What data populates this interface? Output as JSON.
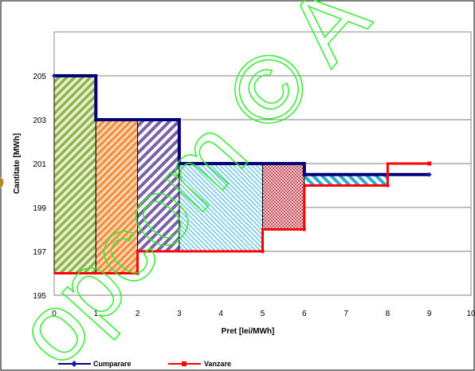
{
  "chart_data": {
    "type": "line",
    "xlabel": "Pret [lei/MWh]",
    "ylabel": "Cantitate [MWh]",
    "xlim": [
      0,
      10
    ],
    "ylim": [
      195,
      207
    ],
    "x_ticks": [
      "0",
      "1",
      "2",
      "3",
      "4",
      "5",
      "6",
      "7",
      "8",
      "9",
      "10"
    ],
    "y_ticks": [
      "195",
      "197",
      "199",
      "201",
      "203",
      "205"
    ],
    "grid": "horizontal",
    "legend_position": "bottom-left",
    "series": [
      {
        "name": "Cumparare",
        "color": "#00007a",
        "marker_color": "#1a1aa0",
        "step_points": [
          [
            0,
            205
          ],
          [
            1,
            205
          ],
          [
            1,
            203
          ],
          [
            3,
            203
          ],
          [
            3,
            201
          ],
          [
            6,
            201
          ],
          [
            6,
            200.5
          ],
          [
            9,
            200.5
          ]
        ]
      },
      {
        "name": "Vanzare",
        "color": "#ff0000",
        "marker_color": "#ff0000",
        "step_points": [
          [
            0,
            196
          ],
          [
            2,
            196
          ],
          [
            2,
            197
          ],
          [
            5,
            197
          ],
          [
            5,
            198
          ],
          [
            6,
            198
          ],
          [
            6,
            200
          ],
          [
            8,
            200
          ],
          [
            8,
            201
          ],
          [
            9,
            201
          ]
        ]
      }
    ],
    "regions": [
      {
        "x": [
          0,
          1
        ],
        "y": [
          196,
          205
        ],
        "color": "#8fb34a",
        "pattern": "diag-green"
      },
      {
        "x": [
          1,
          2
        ],
        "y": [
          196,
          203
        ],
        "color": "#f08c3a",
        "pattern": "diag-orange"
      },
      {
        "x": [
          2,
          3
        ],
        "y": [
          197,
          203
        ],
        "color": "#7b62a8",
        "pattern": "diag-purple"
      },
      {
        "x": [
          3,
          5
        ],
        "y": [
          197,
          201
        ],
        "color": "#6cc6e8",
        "pattern": "diag-blue"
      },
      {
        "x": [
          5,
          6
        ],
        "y": [
          198,
          201
        ],
        "color": "#c7505f",
        "pattern": "cross-red"
      },
      {
        "x": [
          6,
          8
        ],
        "y": [
          200,
          200.5
        ],
        "color": "#2aa8e0",
        "pattern": "diag-cyan"
      }
    ],
    "watermark": {
      "text": "opcom © A",
      "color": "#33ee33"
    }
  }
}
